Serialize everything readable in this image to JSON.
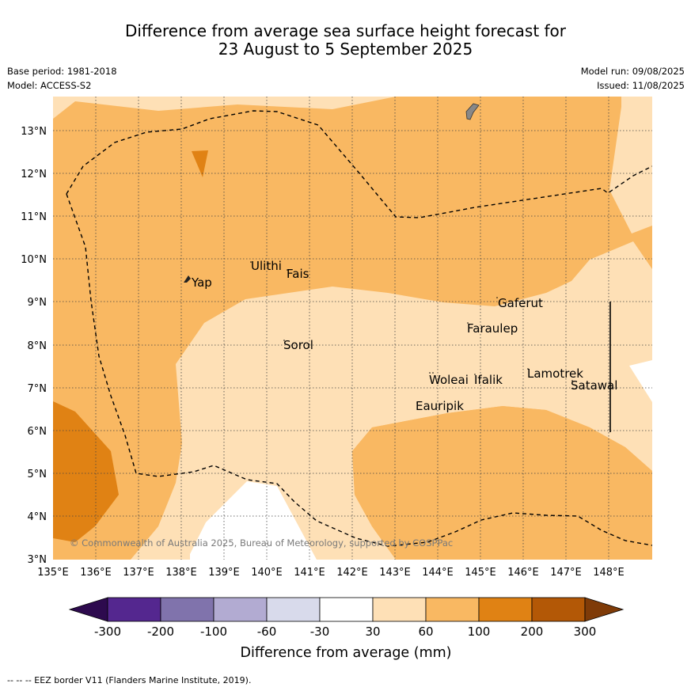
{
  "title_line1": "Difference from average sea surface height forecast for",
  "title_line2": "23 August to 5 September 2025",
  "base_period": "Base period: 1981-2018",
  "model": "Model: ACCESS-S2",
  "model_run": "Model run: 09/08/2025",
  "issued": "Issued: 11/08/2025",
  "lat_labels": [
    "13°N",
    "12°N",
    "11°N",
    "10°N",
    "9°N",
    "8°N",
    "7°N",
    "6°N",
    "5°N",
    "4°N",
    "3°N"
  ],
  "lon_labels": [
    "135°E",
    "136°E",
    "137°E",
    "138°E",
    "139°E",
    "140°E",
    "141°E",
    "142°E",
    "143°E",
    "144°E",
    "145°E",
    "146°E",
    "147°E",
    "148°E"
  ],
  "places": [
    "Yap",
    "Ulithi",
    "Fais",
    "Sorol",
    "Gaferut",
    "Faraulep",
    "Woleai",
    "Ifalik",
    "Lamotrek",
    "Satawal",
    "Eauripik"
  ],
  "copyright": "© Commonwealth of Australia 2025, Bureau of Meteorology, supported by COSPPac",
  "colorbar": {
    "tick_labels": [
      "-300",
      "-200",
      "-100",
      "-60",
      "-30",
      "30",
      "60",
      "100",
      "200",
      "300"
    ],
    "label": "Difference from average (mm)",
    "colors": {
      "below_-300": "#2d0a4e",
      "-300_-200": "#54278f",
      "-200_-100": "#8073ac",
      "-100_-60": "#b2abd2",
      "-60_-30": "#d8daeb",
      "-30_30": "#ffffff",
      "30_60": "#fee0b6",
      "60_100": "#f9b862",
      "100_200": "#e08214",
      "200_300": "#b35806",
      "above_300": "#7f3b08"
    }
  },
  "footer": "--  --  -- EEZ border V11 (Flanders Marine Institute, 2019)."
}
